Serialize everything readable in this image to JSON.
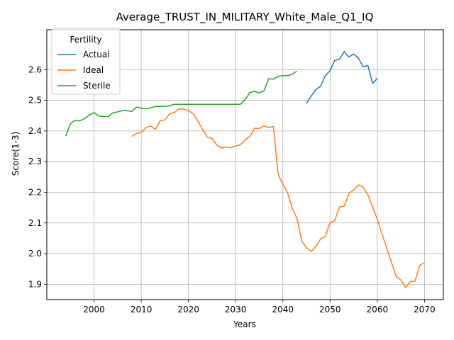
{
  "chart_data": {
    "type": "line",
    "title": "Average_TRUST_IN_MILITARY_White_Male_Q1_IQ",
    "xlabel": "Years",
    "ylabel": "Score(1-3)",
    "xlim": [
      1990,
      2074
    ],
    "ylim": [
      1.85,
      2.73
    ],
    "xticks": [
      2000,
      2010,
      2020,
      2030,
      2040,
      2050,
      2060,
      2070
    ],
    "yticks": [
      1.9,
      2.0,
      2.1,
      2.2,
      2.3,
      2.4,
      2.5,
      2.6
    ],
    "grid": true,
    "legend": {
      "title": "Fertility",
      "placement": "top-left"
    },
    "series": [
      {
        "name": "Actual",
        "color": "#1f77b4",
        "x": [
          2045,
          2046,
          2047,
          2048,
          2049,
          2050,
          2051,
          2052,
          2053,
          2054,
          2055,
          2056,
          2057,
          2058,
          2059,
          2060
        ],
        "y": [
          2.49,
          2.514,
          2.535,
          2.546,
          2.58,
          2.597,
          2.63,
          2.634,
          2.659,
          2.641,
          2.651,
          2.638,
          2.609,
          2.614,
          2.555,
          2.571
        ]
      },
      {
        "name": "Ideal",
        "color": "#ff7f0e",
        "x": [
          2008,
          2009,
          2010,
          2011,
          2012,
          2013,
          2014,
          2015,
          2016,
          2017,
          2018,
          2019,
          2020,
          2021,
          2022,
          2023,
          2024,
          2025,
          2026,
          2027,
          2028,
          2029,
          2030,
          2031,
          2032,
          2033,
          2034,
          2035,
          2036,
          2037,
          2038,
          2039,
          2040,
          2041,
          2042,
          2043,
          2044,
          2045,
          2046,
          2047,
          2048,
          2049,
          2050,
          2051,
          2052,
          2053,
          2054,
          2055,
          2056,
          2057,
          2058,
          2059,
          2060,
          2061,
          2062,
          2063,
          2064,
          2065,
          2066,
          2067,
          2068,
          2069,
          2070
        ],
        "y": [
          2.382,
          2.392,
          2.395,
          2.411,
          2.416,
          2.405,
          2.433,
          2.436,
          2.456,
          2.46,
          2.472,
          2.471,
          2.466,
          2.456,
          2.432,
          2.405,
          2.38,
          2.375,
          2.354,
          2.344,
          2.348,
          2.345,
          2.351,
          2.355,
          2.371,
          2.382,
          2.409,
          2.408,
          2.416,
          2.411,
          2.415,
          2.258,
          2.227,
          2.198,
          2.147,
          2.114,
          2.041,
          2.019,
          2.007,
          2.024,
          2.048,
          2.057,
          2.101,
          2.108,
          2.152,
          2.155,
          2.196,
          2.208,
          2.224,
          2.216,
          2.192,
          2.152,
          2.112,
          2.064,
          2.018,
          1.972,
          1.925,
          1.914,
          1.889,
          1.909,
          1.91,
          1.962,
          1.97
        ]
      },
      {
        "name": "Sterile",
        "color": "#2ca02c",
        "x": [
          1994,
          1995,
          1996,
          1997,
          1998,
          1999,
          2000,
          2001,
          2002,
          2003,
          2004,
          2005,
          2006,
          2007,
          2008,
          2009,
          2010,
          2011,
          2012,
          2013,
          2014,
          2015,
          2016,
          2017,
          2018,
          2019,
          2020,
          2021,
          2022,
          2023,
          2024,
          2025,
          2026,
          2027,
          2028,
          2029,
          2030,
          2031,
          2032,
          2033,
          2034,
          2035,
          2036,
          2037,
          2038,
          2039,
          2040,
          2041,
          2042,
          2043
        ],
        "y": [
          2.383,
          2.424,
          2.435,
          2.433,
          2.44,
          2.452,
          2.46,
          2.449,
          2.447,
          2.447,
          2.459,
          2.462,
          2.466,
          2.466,
          2.464,
          2.478,
          2.474,
          2.472,
          2.475,
          2.48,
          2.48,
          2.48,
          2.482,
          2.487,
          2.487,
          2.487,
          2.487,
          2.487,
          2.487,
          2.487,
          2.487,
          2.487,
          2.487,
          2.487,
          2.487,
          2.487,
          2.487,
          2.487,
          2.502,
          2.525,
          2.529,
          2.524,
          2.531,
          2.57,
          2.569,
          2.578,
          2.58,
          2.58,
          2.585,
          2.595
        ]
      }
    ]
  }
}
